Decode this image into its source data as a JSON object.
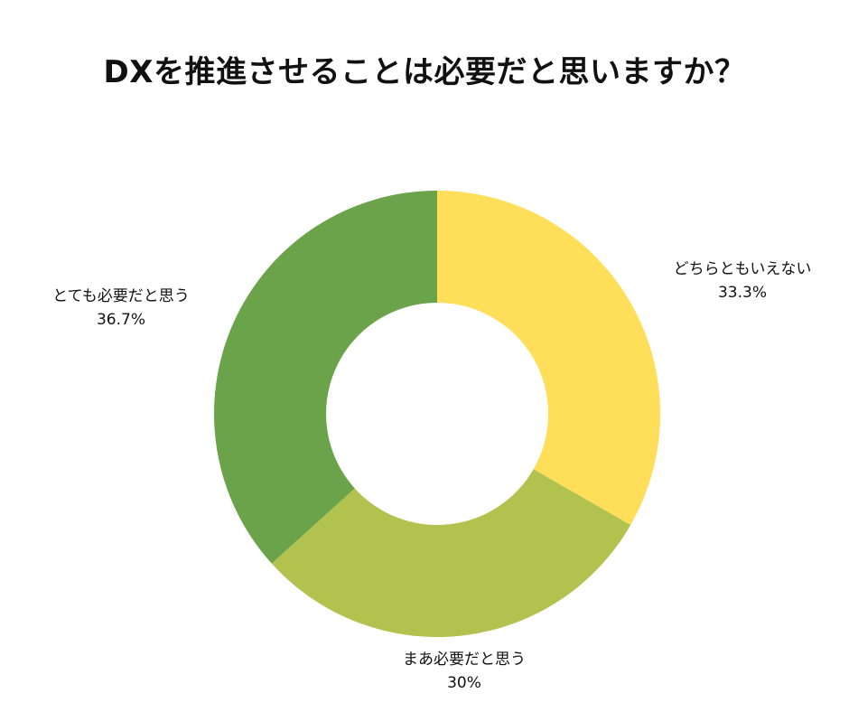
{
  "chart_data": {
    "type": "pie",
    "variant": "donut",
    "title": "DXを推進させることは必要だと思いますか？",
    "legend": "none",
    "slices": [
      {
        "label": "どちらともいえない",
        "value": 33.3,
        "value_label": "33.3%",
        "color": "#ffde59"
      },
      {
        "label": "まあ必要だと思う",
        "value": 30,
        "value_label": "30%",
        "color": "#b1c24f"
      },
      {
        "label": "とても必要だと思う",
        "value": 36.7,
        "value_label": "36.7%",
        "color": "#6ba34b"
      }
    ]
  }
}
